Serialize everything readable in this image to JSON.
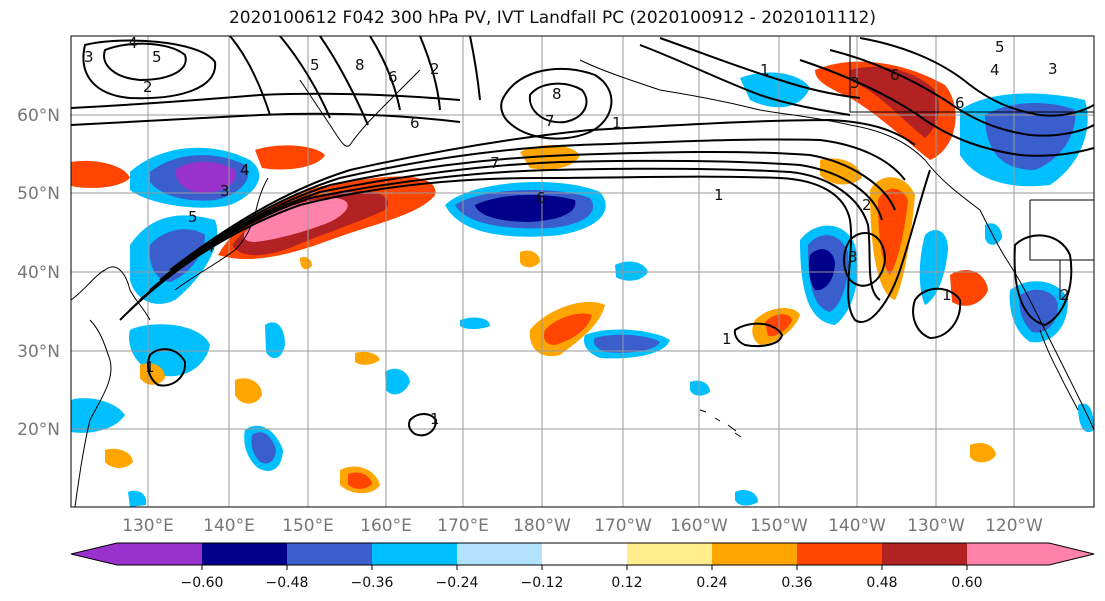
{
  "title": "2020100612 F042 300 hPa PV, IVT Landfall PC (2020100912 - 2020101112)",
  "lat_labels": [
    "60°N",
    "50°N",
    "40°N",
    "30°N",
    "20°N"
  ],
  "lon_labels": [
    "130°E",
    "140°E",
    "150°E",
    "160°E",
    "170°E",
    "180°W",
    "170°W",
    "160°W",
    "150°W",
    "140°W",
    "130°W",
    "120°W"
  ],
  "colorbar": {
    "colors": [
      "#9932CC",
      "#00008B",
      "#3A5FCD",
      "#00BFFF",
      "#B2E2FF",
      "#FFFFFF",
      "#FFEC8B",
      "#FFA500",
      "#FF4500",
      "#B22222",
      "#FF82AB"
    ],
    "tick_labels": [
      "−0.60",
      "−0.48",
      "−0.36",
      "−0.24",
      "−0.12",
      "0.12",
      "0.24",
      "0.36",
      "0.48",
      "0.60"
    ]
  },
  "contour_labels": [
    "4",
    "5",
    "3",
    "2",
    "5",
    "8",
    "6",
    "2",
    "6",
    "8",
    "7",
    "7",
    "1",
    "6",
    "3",
    "4",
    "5",
    "4",
    "1",
    "3",
    "6",
    "6",
    "5",
    "3",
    "4",
    "2",
    "3",
    "1",
    "1",
    "1",
    "1",
    "1",
    "2"
  ]
}
